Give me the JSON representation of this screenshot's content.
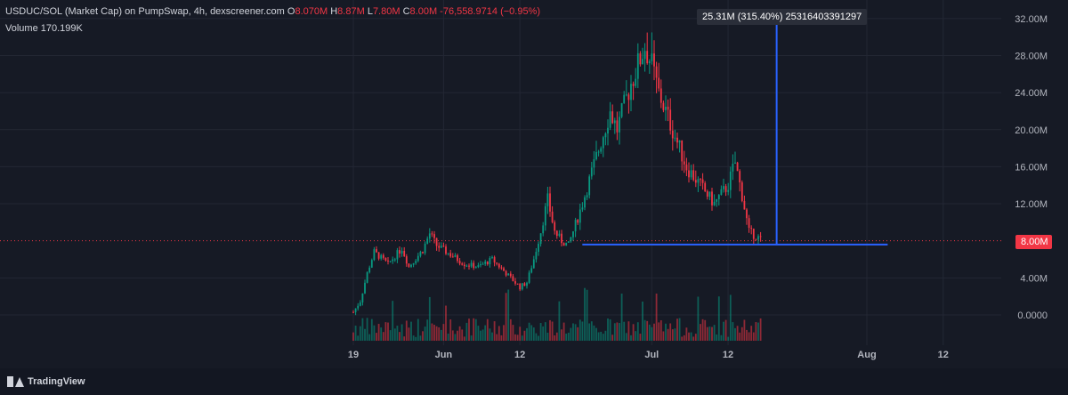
{
  "legend": {
    "symbol": "USDUC/SOL (Market Cap) on PumpSwap, 4h, dexscreener.com",
    "o_label": "O",
    "o_val": "8.070M",
    "h_label": "H",
    "h_val": "8.87M",
    "l_label": "L",
    "l_val": "7.80M",
    "c_label": "C",
    "c_val": "8.00M",
    "change": "-76,558.9714 (−0.95%)",
    "volume_label": "Volume",
    "volume_val": "170.199K"
  },
  "measure_tooltip": "25.31M (315.40%) 25316403391297",
  "last_price_label": "8.00M",
  "brand": "TradingView",
  "colors": {
    "up": "#089981",
    "down": "#f23645",
    "measure": "#2962ff",
    "background": "#161a25"
  },
  "chart_data": {
    "type": "candlestick",
    "title": "USDUC/SOL (Market Cap) on PumpSwap, 4h, dexscreener.com",
    "y_ticks": [
      "32.00M",
      "28.00M",
      "24.00M",
      "20.00M",
      "16.00M",
      "12.00M",
      "4.00M",
      "0.0000"
    ],
    "y_tick_values": [
      32,
      28,
      24,
      20,
      16,
      12,
      4,
      0
    ],
    "x_ticks": [
      "19",
      "Jun",
      "12",
      "Jul",
      "12",
      "Aug",
      "12"
    ],
    "x_tick_dates": [
      "May 19",
      "Jun 1",
      "Jun 12",
      "Jul 1",
      "Jul 12",
      "Aug 1",
      "Aug 12"
    ],
    "unit": "M",
    "ylim": [
      -2.5,
      34
    ],
    "grid": true,
    "last_price": 8.0,
    "price_path": [
      [
        "May 19",
        0.3
      ],
      [
        "May 20",
        1.5
      ],
      [
        "May 21",
        4.5
      ],
      [
        "May 22",
        6.8
      ],
      [
        "May 24",
        5.5
      ],
      [
        "May 26",
        7.2
      ],
      [
        "May 27",
        5.2
      ],
      [
        "May 29",
        7.0
      ],
      [
        "May 30",
        8.8
      ],
      [
        "May 31",
        7.5
      ],
      [
        "Jun 2",
        6.5
      ],
      [
        "Jun 4",
        5.5
      ],
      [
        "Jun 6",
        5.2
      ],
      [
        "Jun 8",
        6.0
      ],
      [
        "Jun 10",
        4.5
      ],
      [
        "Jun 12",
        3.0
      ],
      [
        "Jun 13",
        3.5
      ],
      [
        "Jun 14",
        6.0
      ],
      [
        "Jun 15",
        9.0
      ],
      [
        "Jun 16",
        12.5
      ],
      [
        "Jun 17",
        9.0
      ],
      [
        "Jun 18",
        8.0
      ],
      [
        "Jun 19",
        7.5
      ],
      [
        "Jun 21",
        12.0
      ],
      [
        "Jun 23",
        17.0
      ],
      [
        "Jun 25",
        22.0
      ],
      [
        "Jun 26",
        20.0
      ],
      [
        "Jun 28",
        25.0
      ],
      [
        "Jun 30",
        29.0
      ],
      [
        "Jul 1",
        27.0
      ],
      [
        "Jul 2",
        24.0
      ],
      [
        "Jul 4",
        20.0
      ],
      [
        "Jul 6",
        16.0
      ],
      [
        "Jul 8",
        14.0
      ],
      [
        "Jul 10",
        12.0
      ],
      [
        "Jul 12",
        14.0
      ],
      [
        "Jul 13",
        16.5
      ],
      [
        "Jul 14",
        13.0
      ],
      [
        "Jul 15",
        9.0
      ],
      [
        "Jul 17",
        8.0
      ]
    ],
    "high_point": [
      "Jul 1",
      30.5
    ],
    "measure": {
      "from_date": "Jun 21",
      "to_date": "Aug 4",
      "base_value": 7.6,
      "top_value": 32.9,
      "change_label": "25.31M (315.40%) 25316403391297"
    },
    "volume_label": "Volume"
  }
}
